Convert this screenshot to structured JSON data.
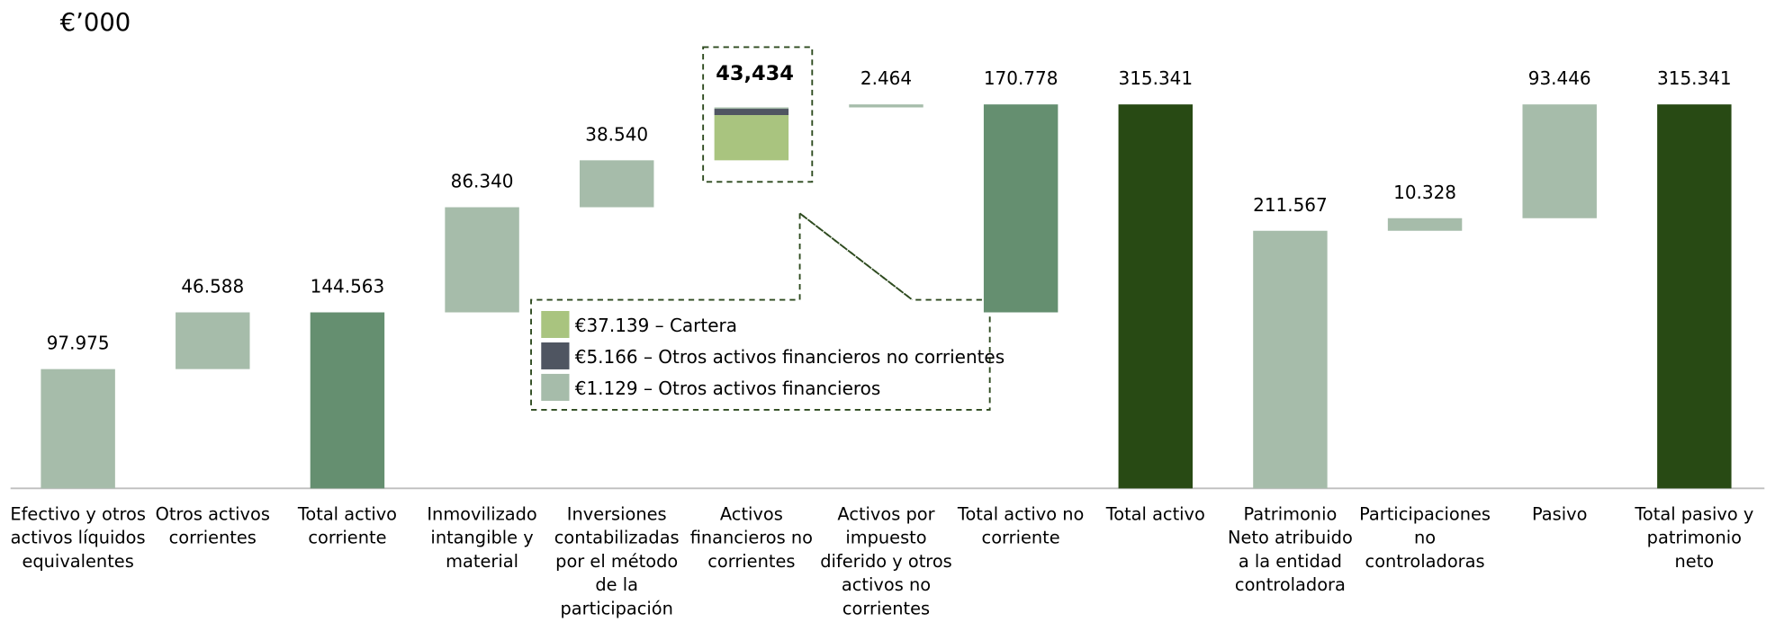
{
  "chart_data": {
    "type": "waterfall",
    "title": "€’000",
    "categories": [
      "Efectivo y otros activos líquidos equivalentes",
      "Otros activos corrientes",
      "Total activo corriente",
      "Inmovilizado intangible y material",
      "Inversiones contabilizadas por el método de la participación",
      "Activos financieros no corrientes",
      "Activos por impuesto diferido y otros activos no corrientes",
      "Total activo no corriente",
      "Total activo",
      "Patrimonio Neto atribuido a la entidad controladora",
      "Participaciones no controladoras",
      "Pasivo",
      "Total pasivo y patrimonio neto"
    ],
    "values": [
      97975,
      46588,
      144563,
      86340,
      38540,
      43434,
      2464,
      170778,
      315341,
      211567,
      10328,
      93446,
      315341
    ],
    "value_labels": [
      "97.975",
      "46.588",
      "144.563",
      "86.340",
      "38.540",
      "43,434",
      "2.464",
      "170.778",
      "315.341",
      "211.567",
      "10.328",
      "93.446",
      "315.341"
    ],
    "kinds": [
      "step",
      "step",
      "subtotal",
      "step",
      "step",
      "step",
      "step",
      "subtotal",
      "total",
      "step",
      "step",
      "step",
      "total"
    ],
    "colors": {
      "step": "#a6bcaa",
      "subtotal": "#658f70",
      "total": "#284a14"
    },
    "breakdown_index": 5,
    "breakdown": [
      {
        "label": "€37.139 – Cartera",
        "value": 37139,
        "color": "#a9c47f"
      },
      {
        "label": "€5.166 – Otros activos financieros no corrientes",
        "value": 5166,
        "color": "#4f5561"
      },
      {
        "label": "€1.129 – Otros activos financieros",
        "value": 1129,
        "color": "#a6bcaa"
      }
    ]
  }
}
